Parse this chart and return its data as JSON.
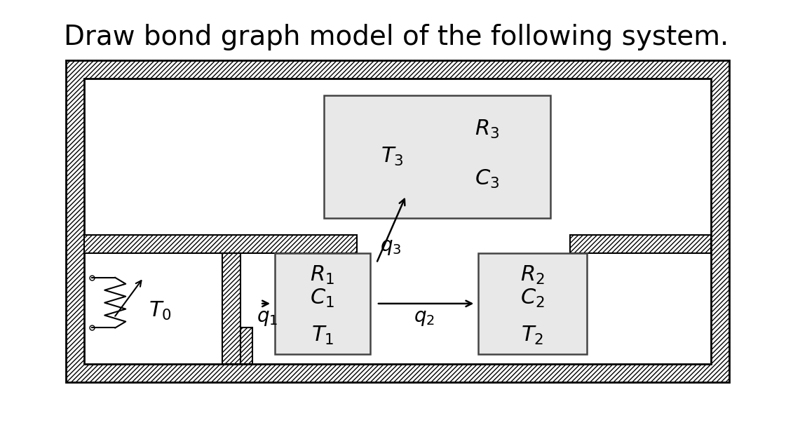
{
  "title": "Draw bond graph model of the following system.",
  "title_fontsize": 28,
  "bg_color": "#ffffff",
  "hatch_color": "#000000",
  "box_fill": "#e8e8e8",
  "box_edge": "#444444",
  "wall_edge": "#000000",
  "arrow_color": "#000000",
  "text_color": "#000000",
  "fig_width": 11.31,
  "fig_height": 6.16
}
